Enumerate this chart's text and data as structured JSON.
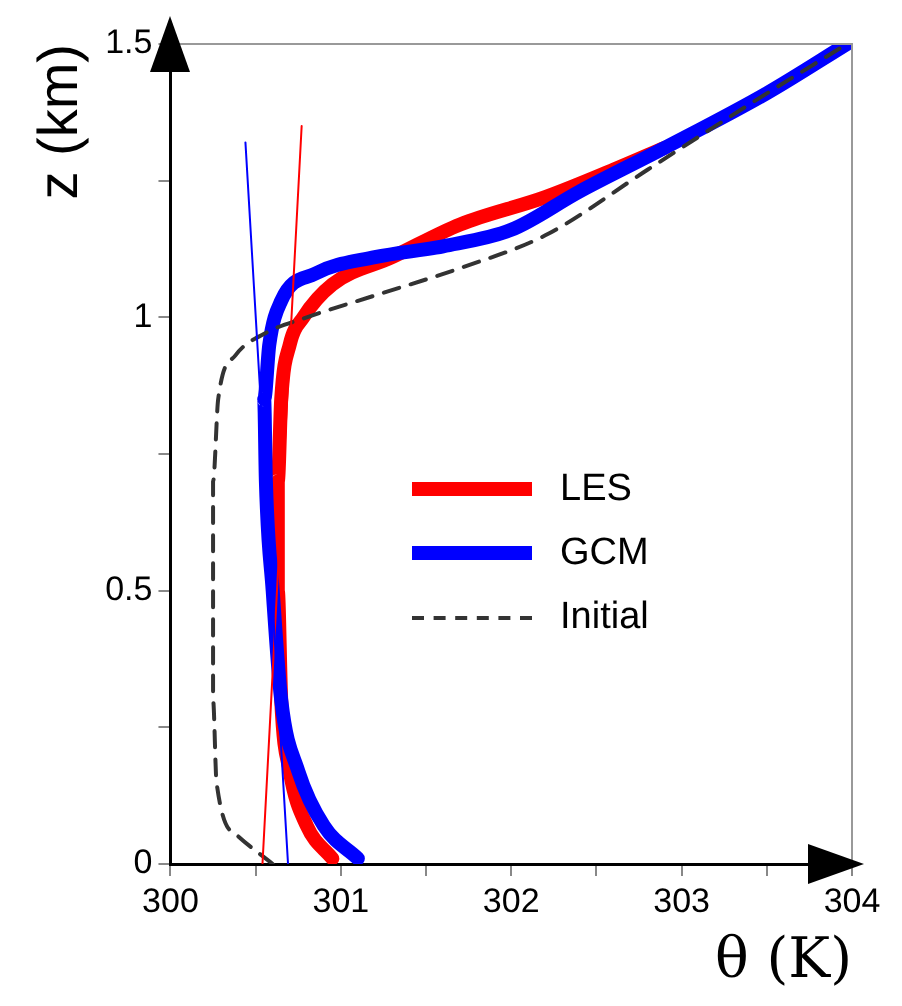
{
  "chart_data": {
    "type": "line",
    "xlabel": "θ (K)",
    "ylabel": "z (km)",
    "xlim": [
      300,
      304
    ],
    "ylim": [
      0,
      1.5
    ],
    "xticks": [
      300,
      {
        "value": 300.5,
        "label": null
      },
      301,
      {
        "value": 301.5,
        "label": null
      },
      302,
      {
        "value": 302.5,
        "label": null
      },
      303,
      {
        "value": 303.5,
        "label": null
      },
      304
    ],
    "yticks": [
      0,
      {
        "value": 0.25,
        "label": null
      },
      0.5,
      {
        "value": 0.75,
        "label": null
      },
      1,
      {
        "value": 1.25,
        "label": null
      },
      1.5
    ],
    "grid": false,
    "legend": "center",
    "marker": "none",
    "series": [
      {
        "name": "LES",
        "color": "#ff0000",
        "x": [
          300.95,
          300.8,
          300.7,
          300.65,
          300.63,
          300.63,
          300.65,
          300.7,
          300.78,
          300.95,
          301.3,
          301.7,
          302.2,
          302.6,
          302.9
        ],
        "values": [
          0.01,
          0.07,
          0.17,
          0.3,
          0.5,
          0.7,
          0.85,
          0.95,
          1.0,
          1.06,
          1.11,
          1.17,
          1.22,
          1.27,
          1.31
        ]
      },
      {
        "name": "GCM",
        "color": "#0000ff",
        "x": [
          301.1,
          300.9,
          300.75,
          300.65,
          300.6,
          300.56,
          300.55,
          300.58,
          300.65,
          300.85,
          301.2,
          301.6,
          302.0,
          302.4,
          302.9,
          303.5,
          303.97
        ],
        "values": [
          0.01,
          0.07,
          0.17,
          0.3,
          0.5,
          0.7,
          0.85,
          0.95,
          1.03,
          1.08,
          1.11,
          1.13,
          1.16,
          1.23,
          1.31,
          1.41,
          1.5
        ]
      },
      {
        "name": "Initial",
        "color": "#333333",
        "line_style": "dashed",
        "x": [
          300.6,
          300.4,
          300.27,
          300.25,
          300.25,
          300.28,
          300.38,
          300.55,
          300.8,
          301.2,
          301.7,
          302.2,
          302.8,
          303.4,
          303.97
        ],
        "values": [
          0,
          0.05,
          0.15,
          0.3,
          0.7,
          0.85,
          0.93,
          0.97,
          1.0,
          1.04,
          1.09,
          1.15,
          1.27,
          1.39,
          1.5
        ]
      },
      {
        "color": "#ff0000",
        "x": [
          300.54,
          300.77
        ],
        "values": [
          0,
          1.35
        ]
      },
      {
        "color": "#0000ff",
        "x": [
          300.69,
          300.44
        ],
        "values": [
          0,
          1.32
        ]
      }
    ]
  }
}
